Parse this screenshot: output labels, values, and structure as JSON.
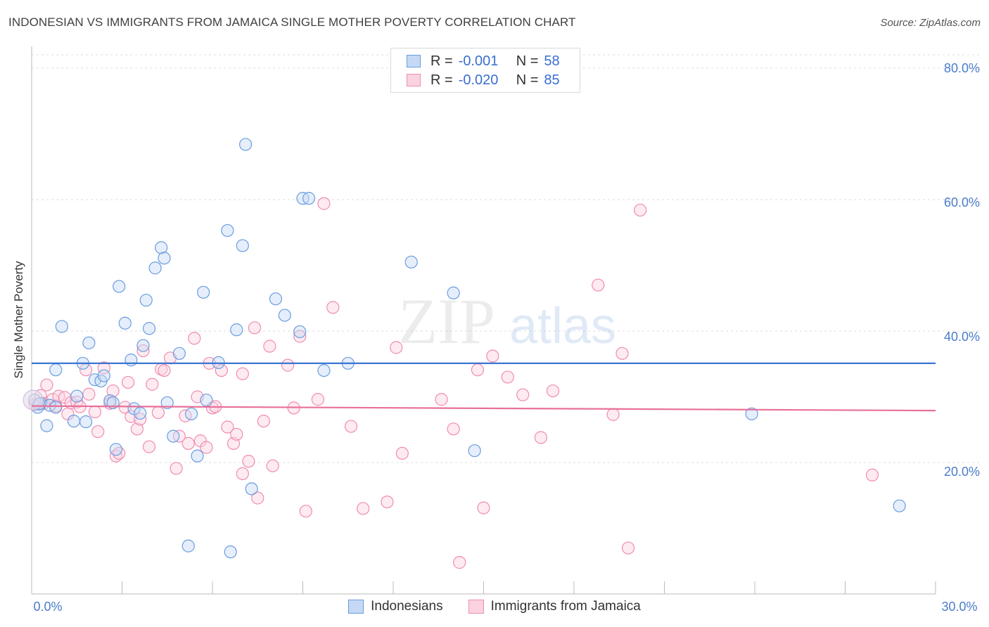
{
  "title": "INDONESIAN VS IMMIGRANTS FROM JAMAICA SINGLE MOTHER POVERTY CORRELATION CHART",
  "source": "Source: ZipAtlas.com",
  "watermark": {
    "zip": "ZIP",
    "atlas": "atlas"
  },
  "legend": {
    "rows": [
      {
        "r_label": "R =",
        "r_value": "-0.001",
        "n_label": "N =",
        "n_value": "58"
      },
      {
        "r_label": "R =",
        "r_value": "-0.020",
        "n_label": "N =",
        "n_value": "85"
      }
    ]
  },
  "bottom_legend": {
    "series1": "Indonesians",
    "series2": "Immigrants from Jamaica"
  },
  "chart_data": {
    "type": "scatter",
    "title": "INDONESIAN VS IMMIGRANTS FROM JAMAICA SINGLE MOTHER POVERTY CORRELATION CHART",
    "xlabel": "",
    "ylabel": "Single Mother Poverty",
    "xlim": [
      0,
      30
    ],
    "ylim": [
      0,
      80
    ],
    "x_tick_labels": [
      "0.0%",
      "30.0%"
    ],
    "y_ticks": [
      20,
      40,
      60,
      80
    ],
    "y_tick_labels": [
      "20.0%",
      "40.0%",
      "60.0%",
      "80.0%"
    ],
    "colors": {
      "indonesians": "#6a9de0",
      "jamaica": "#f08cb0",
      "line1": "#2f6fd0",
      "line2": "#e8709a"
    },
    "series": [
      {
        "name": "Indonesians",
        "trend": {
          "x0": 0,
          "y0": 35.1,
          "x1": 30,
          "y1": 35.1
        },
        "points": [
          [
            0.2,
            28.4
          ],
          [
            0.3,
            29.0
          ],
          [
            0.5,
            25.6
          ],
          [
            0.6,
            28.7
          ],
          [
            0.8,
            34.1
          ],
          [
            0.8,
            28.4
          ],
          [
            1.0,
            40.7
          ],
          [
            1.4,
            26.3
          ],
          [
            1.5,
            30.1
          ],
          [
            1.7,
            35.1
          ],
          [
            1.8,
            26.2
          ],
          [
            1.9,
            38.2
          ],
          [
            2.1,
            32.6
          ],
          [
            2.3,
            32.4
          ],
          [
            2.4,
            33.2
          ],
          [
            2.6,
            29.4
          ],
          [
            2.7,
            29.1
          ],
          [
            2.8,
            22.0
          ],
          [
            2.9,
            46.8
          ],
          [
            3.1,
            41.2
          ],
          [
            3.3,
            35.6
          ],
          [
            3.4,
            28.2
          ],
          [
            3.6,
            27.5
          ],
          [
            3.7,
            37.8
          ],
          [
            3.8,
            44.7
          ],
          [
            3.9,
            40.4
          ],
          [
            4.1,
            49.6
          ],
          [
            4.3,
            52.7
          ],
          [
            4.4,
            51.1
          ],
          [
            4.5,
            29.1
          ],
          [
            4.7,
            24.0
          ],
          [
            4.9,
            36.6
          ],
          [
            5.2,
            7.3
          ],
          [
            5.3,
            27.4
          ],
          [
            5.5,
            21.0
          ],
          [
            5.7,
            45.9
          ],
          [
            5.8,
            29.5
          ],
          [
            6.2,
            35.2
          ],
          [
            6.5,
            55.3
          ],
          [
            6.6,
            6.4
          ],
          [
            6.8,
            40.2
          ],
          [
            7.0,
            53.0
          ],
          [
            7.1,
            68.4
          ],
          [
            7.3,
            16.0
          ],
          [
            8.1,
            44.9
          ],
          [
            8.4,
            42.4
          ],
          [
            8.9,
            39.9
          ],
          [
            9.0,
            60.2
          ],
          [
            9.2,
            60.2
          ],
          [
            9.7,
            34.0
          ],
          [
            10.5,
            35.1
          ],
          [
            12.6,
            50.5
          ],
          [
            14.0,
            45.8
          ],
          [
            14.7,
            21.8
          ],
          [
            23.9,
            27.4
          ],
          [
            28.8,
            13.4
          ],
          [
            0.1,
            29.5
          ],
          [
            0.25,
            28.9
          ]
        ]
      },
      {
        "name": "Immigrants from Jamaica",
        "trend": {
          "x0": 0,
          "y0": 28.6,
          "x1": 30,
          "y1": 27.9
        },
        "points": [
          [
            0.1,
            28.8
          ],
          [
            0.2,
            28.9
          ],
          [
            0.3,
            30.2
          ],
          [
            0.4,
            29.0
          ],
          [
            0.5,
            31.8
          ],
          [
            0.7,
            29.6
          ],
          [
            0.8,
            28.6
          ],
          [
            0.9,
            30.1
          ],
          [
            1.1,
            29.9
          ],
          [
            1.2,
            27.4
          ],
          [
            1.3,
            29.1
          ],
          [
            1.5,
            29.2
          ],
          [
            1.6,
            28.5
          ],
          [
            1.8,
            34.1
          ],
          [
            1.9,
            30.4
          ],
          [
            2.1,
            27.7
          ],
          [
            2.2,
            24.7
          ],
          [
            2.4,
            34.4
          ],
          [
            2.6,
            29.0
          ],
          [
            2.7,
            30.9
          ],
          [
            2.8,
            21.0
          ],
          [
            2.9,
            21.4
          ],
          [
            3.1,
            28.4
          ],
          [
            3.2,
            32.2
          ],
          [
            3.3,
            27.0
          ],
          [
            3.5,
            25.1
          ],
          [
            3.6,
            26.6
          ],
          [
            3.7,
            37.0
          ],
          [
            3.9,
            22.4
          ],
          [
            4.0,
            31.9
          ],
          [
            4.2,
            27.6
          ],
          [
            4.3,
            34.2
          ],
          [
            4.4,
            34.0
          ],
          [
            4.6,
            35.9
          ],
          [
            4.8,
            19.1
          ],
          [
            4.9,
            24.0
          ],
          [
            5.1,
            27.1
          ],
          [
            5.2,
            22.9
          ],
          [
            5.4,
            38.9
          ],
          [
            5.5,
            30.0
          ],
          [
            5.6,
            23.3
          ],
          [
            5.8,
            22.3
          ],
          [
            5.9,
            35.1
          ],
          [
            6.0,
            28.3
          ],
          [
            6.1,
            28.5
          ],
          [
            6.3,
            34.0
          ],
          [
            6.5,
            25.4
          ],
          [
            6.7,
            22.9
          ],
          [
            6.8,
            24.3
          ],
          [
            7.0,
            33.5
          ],
          [
            7.0,
            18.3
          ],
          [
            7.2,
            20.2
          ],
          [
            7.4,
            40.5
          ],
          [
            7.5,
            14.6
          ],
          [
            7.7,
            26.3
          ],
          [
            7.9,
            37.7
          ],
          [
            8.0,
            19.5
          ],
          [
            8.5,
            34.8
          ],
          [
            8.7,
            28.3
          ],
          [
            8.9,
            39.2
          ],
          [
            9.1,
            12.6
          ],
          [
            9.5,
            29.6
          ],
          [
            9.7,
            59.4
          ],
          [
            10.0,
            43.6
          ],
          [
            10.6,
            25.5
          ],
          [
            11.0,
            13.0
          ],
          [
            11.8,
            14.0
          ],
          [
            12.1,
            37.5
          ],
          [
            12.3,
            21.4
          ],
          [
            13.6,
            29.6
          ],
          [
            14.0,
            25.1
          ],
          [
            14.2,
            4.8
          ],
          [
            14.8,
            34.1
          ],
          [
            15.0,
            13.1
          ],
          [
            15.3,
            36.2
          ],
          [
            15.8,
            33.0
          ],
          [
            16.3,
            30.3
          ],
          [
            16.9,
            23.8
          ],
          [
            17.3,
            30.9
          ],
          [
            18.8,
            47.0
          ],
          [
            19.3,
            27.3
          ],
          [
            19.6,
            36.6
          ],
          [
            19.8,
            7.0
          ],
          [
            20.2,
            58.4
          ],
          [
            27.9,
            18.1
          ]
        ]
      }
    ]
  }
}
